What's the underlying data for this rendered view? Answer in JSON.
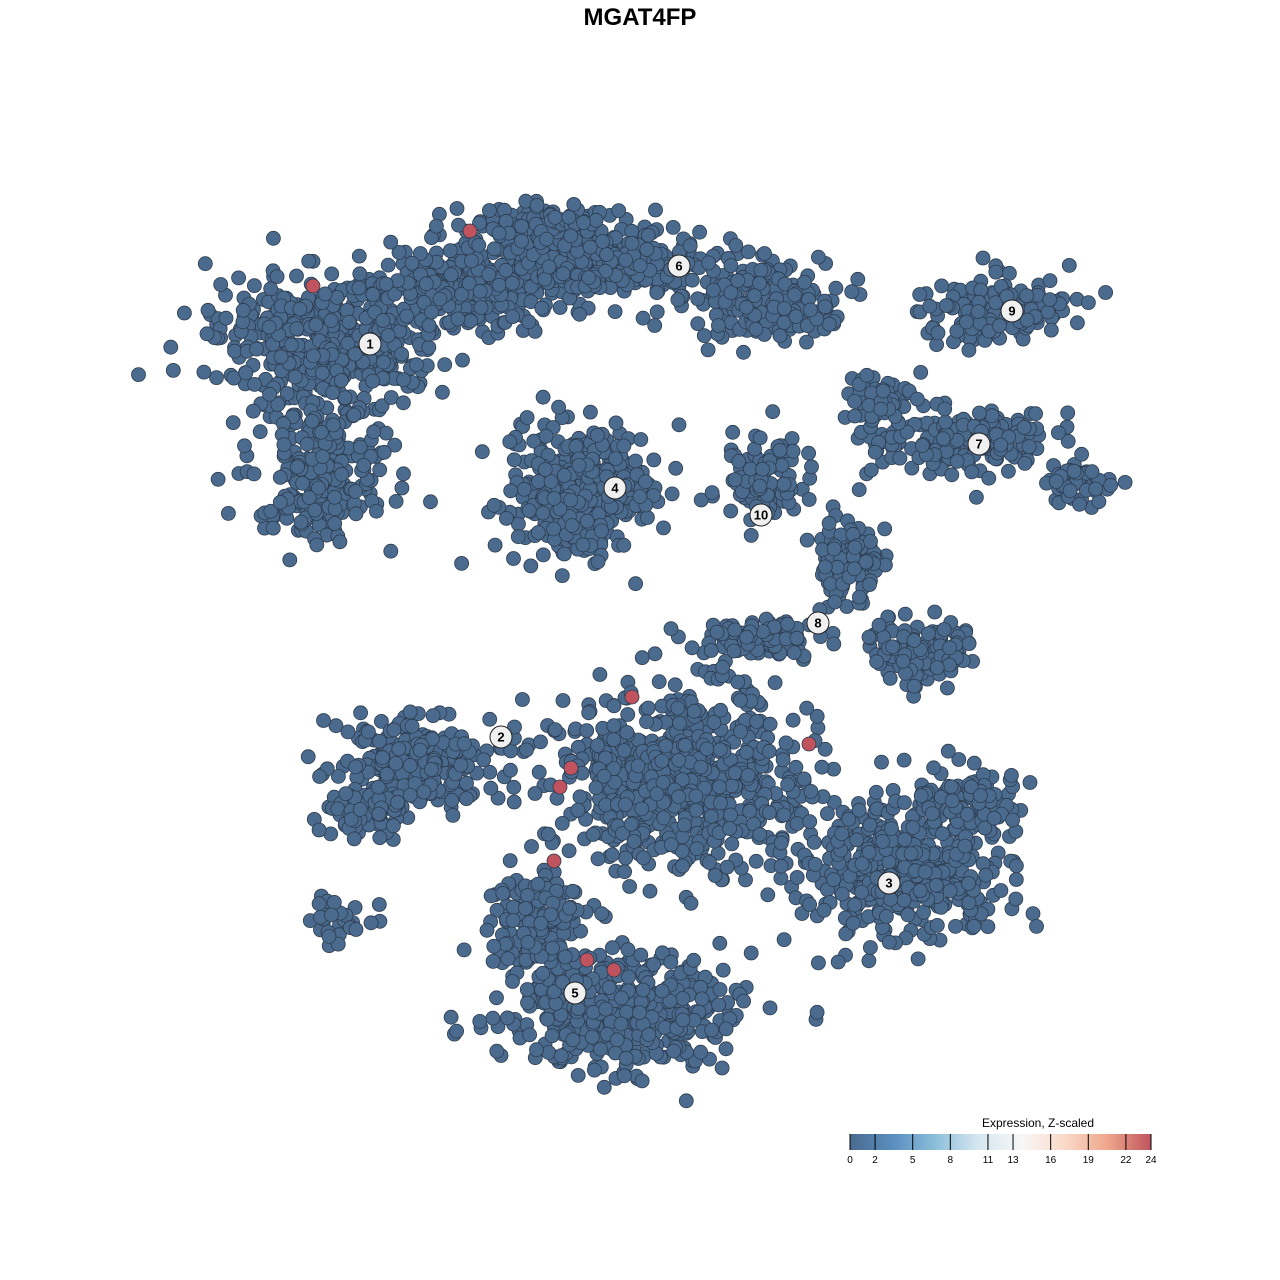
{
  "chart_data": {
    "type": "scatter",
    "title": "MGAT4FP",
    "xlabel": "",
    "ylabel": "",
    "grid": false,
    "point_color": "#4a6a8e",
    "point_outline": "#2e3d4f",
    "high_color": "#c0535e",
    "clusters": [
      {
        "label": "1",
        "x": -27.0,
        "y": 29.6
      },
      {
        "label": "2",
        "x": -13.9,
        "y": -9.7
      },
      {
        "label": "3",
        "x": 24.9,
        "y": -24.3
      },
      {
        "label": "4",
        "x": -2.5,
        "y": 15.2
      },
      {
        "label": "5",
        "x": -6.5,
        "y": -35.3
      },
      {
        "label": "6",
        "x": 3.9,
        "y": 37.4
      },
      {
        "label": "7",
        "x": 33.9,
        "y": 19.6
      },
      {
        "label": "8",
        "x": 17.8,
        "y": 1.7
      },
      {
        "label": "9",
        "x": 37.2,
        "y": 32.9
      },
      {
        "label": "10",
        "x": 12.1,
        "y": 12.5
      }
    ],
    "high_expression_points": [
      {
        "x": -32.7,
        "y": 35.4
      },
      {
        "x": -17.0,
        "y": 40.9
      },
      {
        "x": -0.8,
        "y": -5.7
      },
      {
        "x": -6.9,
        "y": -12.8
      },
      {
        "x": -8.0,
        "y": -14.7
      },
      {
        "x": 16.9,
        "y": -10.4
      },
      {
        "x": -8.6,
        "y": -22.1
      },
      {
        "x": -5.3,
        "y": -32.0
      },
      {
        "x": -2.6,
        "y": -33.0
      }
    ],
    "legend": {
      "title": "Expression, Z-scaled",
      "placement": "bottom-right",
      "ticks": [
        "0",
        "2",
        "5",
        "8",
        "11",
        "13",
        "16",
        "19",
        "22",
        "24"
      ],
      "range": [
        0,
        24
      ],
      "colors": [
        "#4a6a8e",
        "#5b8ec0",
        "#8dbfda",
        "#d6e7f0",
        "#f7f7f7",
        "#f9d9c8",
        "#eea68c",
        "#c0535e"
      ]
    }
  }
}
